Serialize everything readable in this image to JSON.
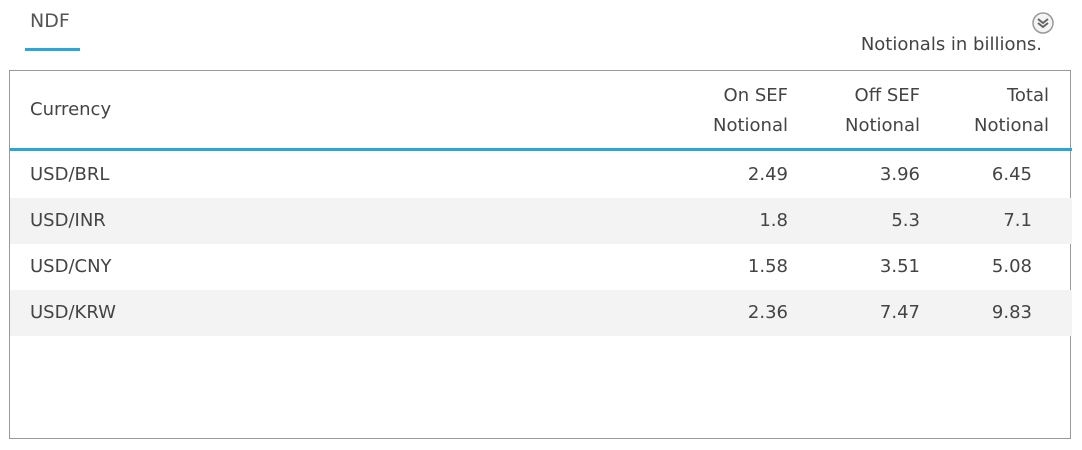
{
  "tab": "NDF",
  "note": "Notionals in billions.",
  "table": {
    "columns": [
      "Currency",
      "On SEF Notional",
      "Off SEF Notional",
      "Total Notional"
    ],
    "rows": [
      [
        "USD/BRL",
        "2.49",
        "3.96",
        "6.45"
      ],
      [
        "USD/INR",
        "1.8",
        "5.3",
        "7.1"
      ],
      [
        "USD/CNY",
        "1.58",
        "3.51",
        "5.08"
      ],
      [
        "USD/KRW",
        "2.36",
        "7.47",
        "9.83"
      ]
    ]
  }
}
